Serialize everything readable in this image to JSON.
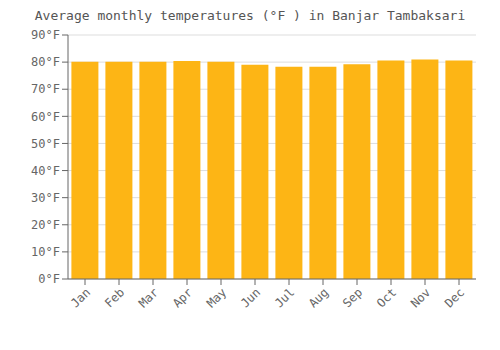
{
  "chart_data": {
    "type": "bar",
    "title": "Average monthly temperatures (°F ) in Banjar Tambaksari",
    "categories": [
      "Jan",
      "Feb",
      "Mar",
      "Apr",
      "May",
      "Jun",
      "Jul",
      "Aug",
      "Sep",
      "Oct",
      "Nov",
      "Dec"
    ],
    "values": [
      80.1,
      80.1,
      80.1,
      80.4,
      80.1,
      79.0,
      78.3,
      78.3,
      79.2,
      80.6,
      81.0,
      80.6
    ],
    "color": "#FDB515",
    "ylim": [
      0,
      90
    ],
    "yticks": [
      {
        "value": 0,
        "label": "0°F"
      },
      {
        "value": 10,
        "label": "10°F"
      },
      {
        "value": 20,
        "label": "20°F"
      },
      {
        "value": 30,
        "label": "30°F"
      },
      {
        "value": 40,
        "label": "40°F"
      },
      {
        "value": 50,
        "label": "50°F"
      },
      {
        "value": 60,
        "label": "60°F"
      },
      {
        "value": 70,
        "label": "70°F"
      },
      {
        "value": 80,
        "label": "80°F"
      },
      {
        "value": 90,
        "label": "90°F"
      }
    ],
    "grid": true
  }
}
